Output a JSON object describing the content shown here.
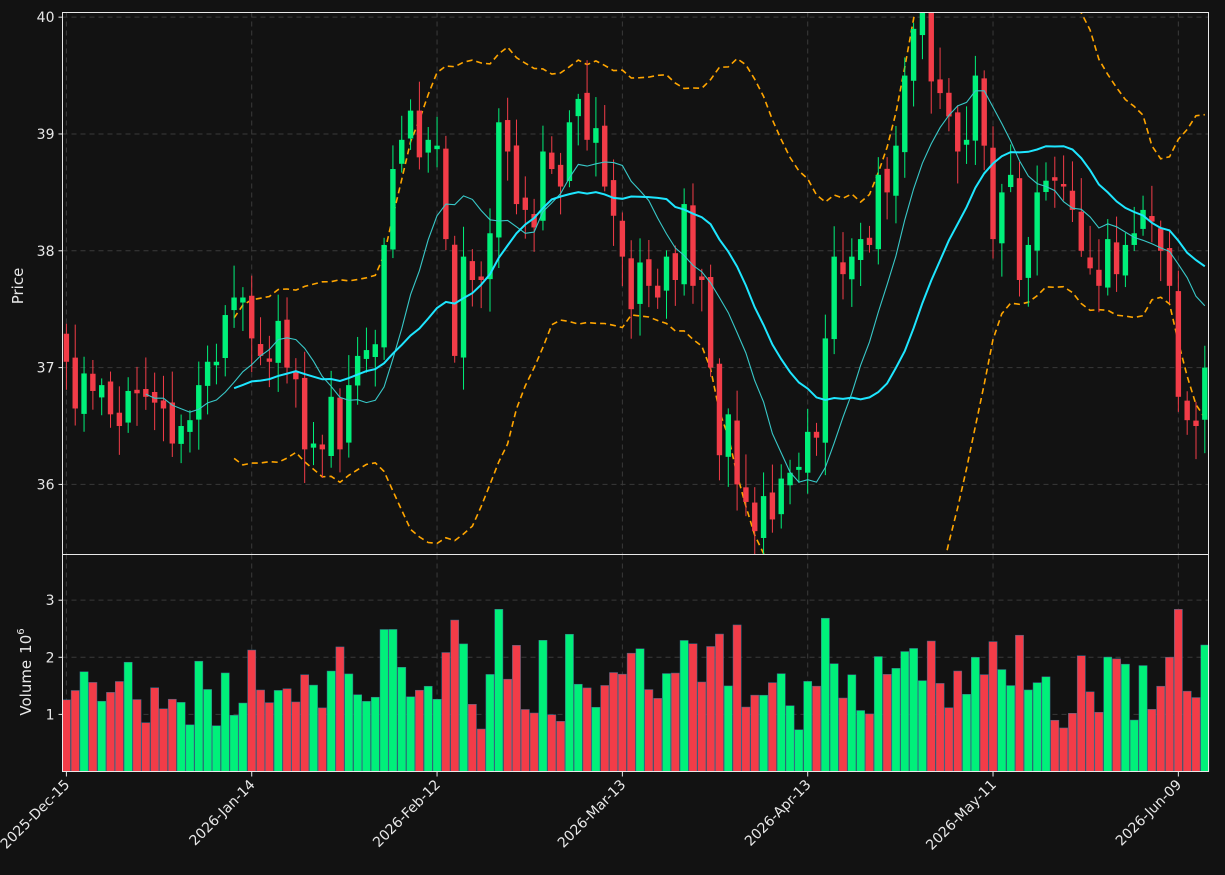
{
  "colors": {
    "background": "#121212",
    "grid": "#3a3a3a",
    "frame": "#e8e8e8",
    "up": "#00f07a",
    "down": "#f23c48",
    "ma_fast": "#38c8c8",
    "ma_slow": "#1ee6ff",
    "bands": "#ffa500"
  },
  "chart_data": {
    "type": "candlestick",
    "price_panel": {
      "ylabel": "Price",
      "ylim": [
        35.4,
        40.04
      ],
      "yticks": [
        36,
        37,
        38,
        39,
        40
      ],
      "grid": true
    },
    "volume_panel": {
      "ylabel": "Volume",
      "ylabel_exp": "6",
      "ylim": [
        0.0,
        3.8
      ],
      "yticks": [
        1,
        2,
        3
      ],
      "grid": true
    },
    "x_tick_labels": [
      {
        "index": 0,
        "label": "2025-Dec-15"
      },
      {
        "index": 21,
        "label": "2026-Jan-14"
      },
      {
        "index": 42,
        "label": "2026-Feb-12"
      },
      {
        "index": 63,
        "label": "2026-Mar-13"
      },
      {
        "index": 84,
        "label": "2026-Apr-13"
      },
      {
        "index": 105,
        "label": "2026-May-11"
      },
      {
        "index": 126,
        "label": "2026-Jun-09"
      }
    ],
    "n_bars": 130,
    "close": [
      37.05,
      36.65,
      36.95,
      36.8,
      36.85,
      36.6,
      36.5,
      36.8,
      36.78,
      36.75,
      36.7,
      36.65,
      36.35,
      36.5,
      36.55,
      36.85,
      37.05,
      37.05,
      37.45,
      37.6,
      37.6,
      37.25,
      37.1,
      37.05,
      37.4,
      37.0,
      36.9,
      36.3,
      36.35,
      36.3,
      36.75,
      36.3,
      36.85,
      37.1,
      37.15,
      37.2,
      38.05,
      38.7,
      38.95,
      39.2,
      38.8,
      38.95,
      38.9,
      38.1,
      37.1,
      37.95,
      37.75,
      37.75,
      38.15,
      39.1,
      38.85,
      38.4,
      38.35,
      38.2,
      38.85,
      38.7,
      38.55,
      39.1,
      39.3,
      38.95,
      39.05,
      38.55,
      38.3,
      37.95,
      37.5,
      37.9,
      37.7,
      37.6,
      37.95,
      37.75,
      38.4,
      37.7,
      37.75,
      37.0,
      36.25,
      36.6,
      36.0,
      35.85,
      35.6,
      35.9,
      35.7,
      36.05,
      36.1,
      36.15,
      36.45,
      36.4,
      37.25,
      37.95,
      37.8,
      37.95,
      38.1,
      38.05,
      38.65,
      38.5,
      38.9,
      39.5,
      39.9,
      40.15,
      39.45,
      39.35,
      39.15,
      38.85,
      38.95,
      39.5,
      38.9,
      38.1,
      38.5,
      38.65,
      37.75,
      38.05,
      38.5,
      38.6,
      38.6,
      38.55,
      38.35,
      38.0,
      37.85,
      37.7,
      38.1,
      37.8,
      38.05,
      38.15,
      38.35,
      38.25,
      38.0,
      37.7,
      36.75,
      36.55,
      36.5,
      37.0
    ]
  }
}
